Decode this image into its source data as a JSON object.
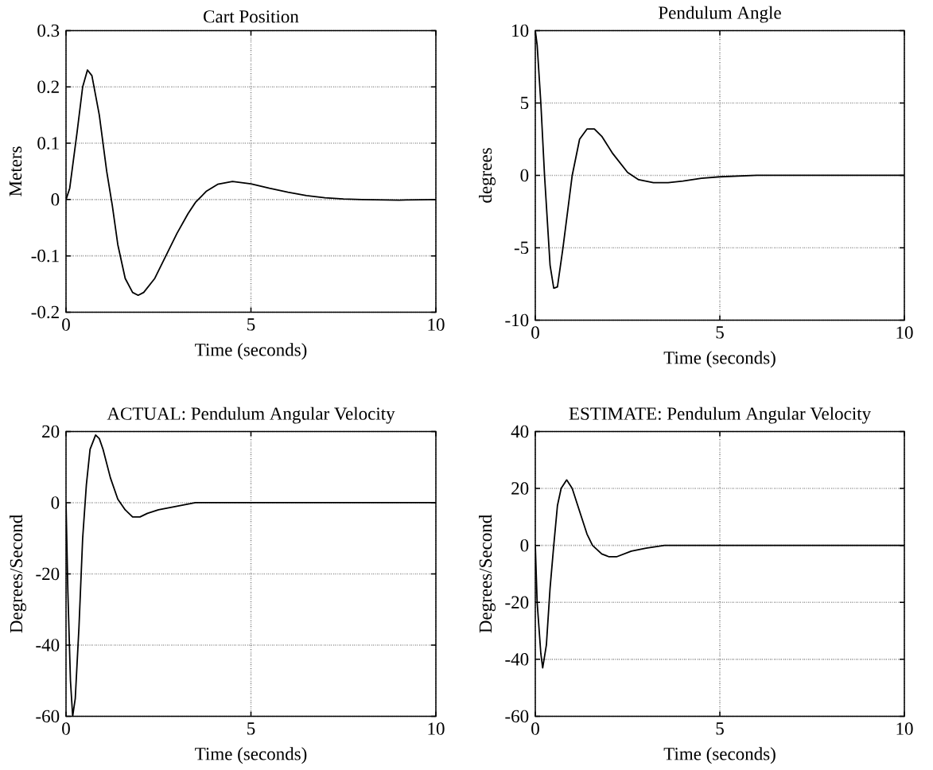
{
  "chart_data": [
    {
      "type": "line",
      "title": "Cart Position",
      "xlabel": "Time (seconds)",
      "ylabel": "Meters",
      "color": "#000000",
      "grid": true,
      "xlim": [
        0,
        10
      ],
      "ylim": [
        -0.2,
        0.3
      ],
      "xticks": [
        0,
        5,
        10
      ],
      "yticks": [
        -0.2,
        -0.1,
        0,
        0.1,
        0.2,
        0.3
      ],
      "x": [
        0,
        0.1,
        0.3,
        0.45,
        0.58,
        0.7,
        0.9,
        1.1,
        1.25,
        1.4,
        1.6,
        1.8,
        1.95,
        2.1,
        2.4,
        2.7,
        3.0,
        3.3,
        3.5,
        3.8,
        4.1,
        4.5,
        5.0,
        5.5,
        6,
        6.5,
        7,
        7.5,
        8,
        9,
        10
      ],
      "values": [
        0,
        0.02,
        0.12,
        0.2,
        0.23,
        0.22,
        0.15,
        0.05,
        -0.01,
        -0.08,
        -0.14,
        -0.165,
        -0.17,
        -0.165,
        -0.14,
        -0.1,
        -0.06,
        -0.025,
        -0.005,
        0.015,
        0.027,
        0.032,
        0.028,
        0.02,
        0.013,
        0.007,
        0.003,
        0.001,
        0,
        -0.001,
        0
      ]
    },
    {
      "type": "line",
      "title": "Pendulum Angle",
      "xlabel": "Time (seconds)",
      "ylabel": "degrees",
      "color": "#000000",
      "grid": true,
      "xlim": [
        0,
        10
      ],
      "ylim": [
        -10,
        10
      ],
      "xticks": [
        0,
        5,
        10
      ],
      "yticks": [
        -10,
        -5,
        0,
        5,
        10
      ],
      "x": [
        0,
        0.05,
        0.15,
        0.25,
        0.4,
        0.5,
        0.6,
        0.75,
        1.0,
        1.2,
        1.4,
        1.6,
        1.8,
        2.1,
        2.5,
        2.8,
        3.2,
        3.6,
        4.0,
        4.5,
        5,
        6,
        7,
        8,
        10
      ],
      "values": [
        10,
        9,
        5,
        0,
        -6.2,
        -7.8,
        -7.7,
        -5,
        0,
        2.5,
        3.2,
        3.2,
        2.7,
        1.5,
        0.2,
        -0.3,
        -0.5,
        -0.5,
        -0.4,
        -0.2,
        -0.1,
        0,
        0,
        0,
        0
      ]
    },
    {
      "type": "line",
      "title": "ACTUAL: Pendulum Angular Velocity",
      "xlabel": "Time (seconds)",
      "ylabel": "Degrees/Second",
      "color": "#000000",
      "grid": true,
      "xlim": [
        0,
        10
      ],
      "ylim": [
        -60,
        20
      ],
      "xticks": [
        0,
        5,
        10
      ],
      "yticks": [
        -60,
        -40,
        -20,
        0,
        20
      ],
      "x": [
        0,
        0.05,
        0.12,
        0.18,
        0.25,
        0.35,
        0.45,
        0.55,
        0.65,
        0.8,
        0.9,
        1.0,
        1.2,
        1.4,
        1.6,
        1.8,
        2.0,
        2.2,
        2.5,
        3.0,
        3.5,
        4,
        4.5,
        5,
        6,
        10
      ],
      "values": [
        0,
        -25,
        -50,
        -60,
        -55,
        -35,
        -10,
        5,
        15,
        19,
        18,
        15,
        7,
        1,
        -2,
        -4,
        -4,
        -3,
        -2,
        -1,
        0,
        0,
        0,
        0,
        0,
        0
      ]
    },
    {
      "type": "line",
      "title": "ESTIMATE: Pendulum Angular Velocity",
      "xlabel": "Time (seconds)",
      "ylabel": "Degrees/Second",
      "color": "#000000",
      "grid": true,
      "xlim": [
        0,
        10
      ],
      "ylim": [
        -60,
        40
      ],
      "xticks": [
        0,
        5,
        10
      ],
      "yticks": [
        -60,
        -40,
        -20,
        0,
        20,
        40
      ],
      "x": [
        0,
        0.05,
        0.15,
        0.2,
        0.3,
        0.4,
        0.5,
        0.6,
        0.7,
        0.85,
        1.0,
        1.2,
        1.4,
        1.55,
        1.8,
        2.0,
        2.2,
        2.6,
        3.0,
        3.5,
        4,
        4.5,
        5,
        10
      ],
      "values": [
        0,
        -20,
        -38,
        -43,
        -35,
        -15,
        0,
        14,
        20,
        23,
        20,
        12,
        4,
        0,
        -3,
        -4,
        -4,
        -2,
        -1,
        0,
        0,
        0,
        0,
        0
      ]
    }
  ]
}
